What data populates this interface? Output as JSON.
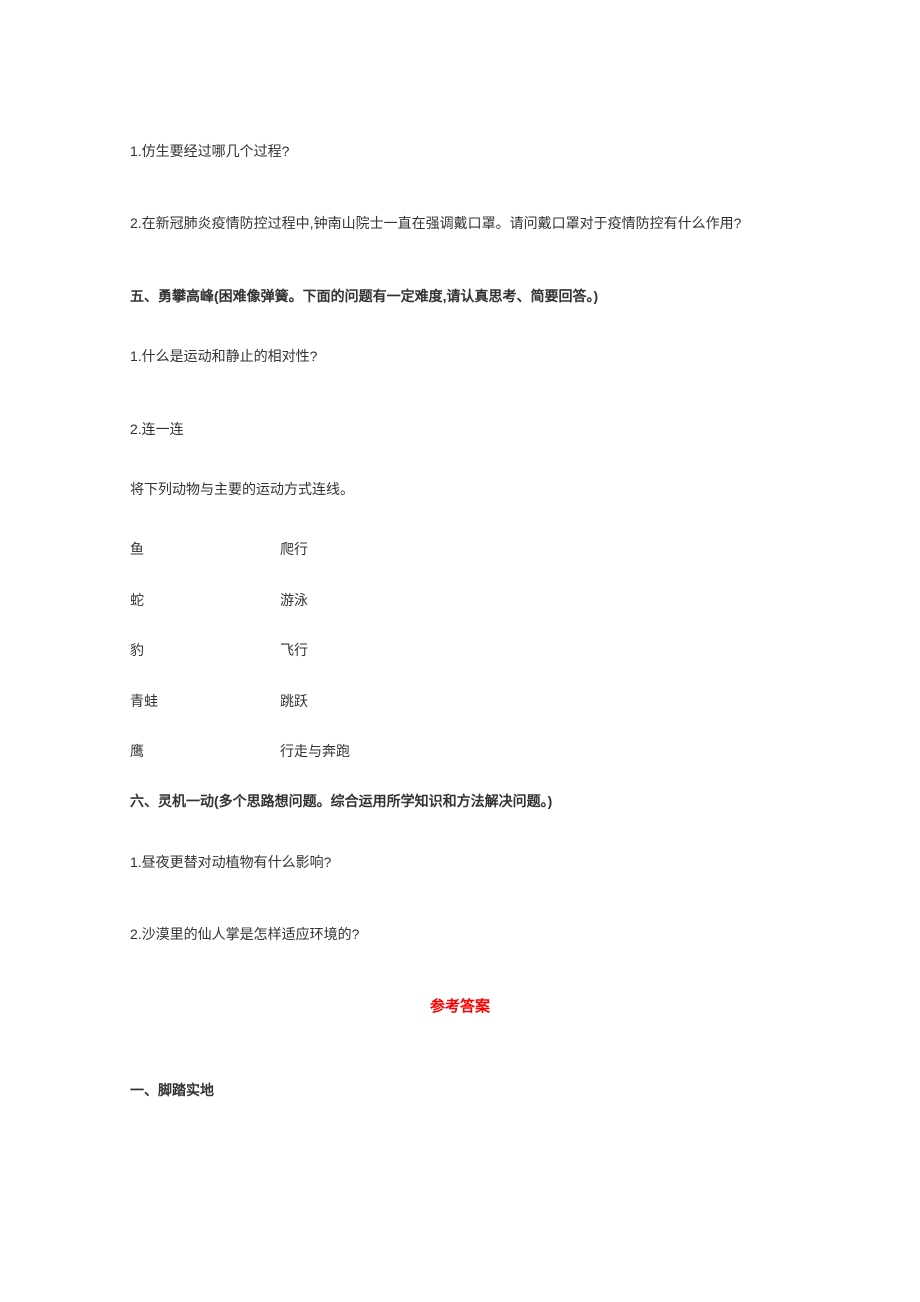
{
  "questions_part4": {
    "q1": "1.仿生要经过哪几个过程?",
    "q2": "2.在新冠肺炎疫情防控过程中,钟南山院士一直在强调戴口罩。请问戴口罩对于疫情防控有什么作用?"
  },
  "section5": {
    "heading": "五、勇攀高峰(困难像弹簧。下面的问题有一定难度,请认真思考、简要回答。)",
    "q1": "1.什么是运动和静止的相对性?",
    "q2": "2.连一连",
    "intro": "将下列动物与主要的运动方式连线。",
    "matching": [
      {
        "left": "鱼",
        "right": "爬行"
      },
      {
        "left": "蛇",
        "right": "游泳"
      },
      {
        "left": "豹",
        "right": "飞行"
      },
      {
        "left": "青蛙",
        "right": "跳跃"
      },
      {
        "left": "鹰",
        "right": "行走与奔跑"
      }
    ]
  },
  "section6": {
    "heading": "六、灵机一动(多个思路想问题。综合运用所学知识和方法解决问题。)",
    "q1": "1.昼夜更替对动植物有什么影响?",
    "q2": "2.沙漠里的仙人掌是怎样适应环境的?"
  },
  "answer": {
    "title": "参考答案",
    "section1": "一、脚踏实地"
  },
  "colors": {
    "text": "#333333",
    "answer_title": "#ff0000",
    "background": "#ffffff"
  },
  "typography": {
    "body_fontsize": 14,
    "heading_weight": "bold"
  }
}
